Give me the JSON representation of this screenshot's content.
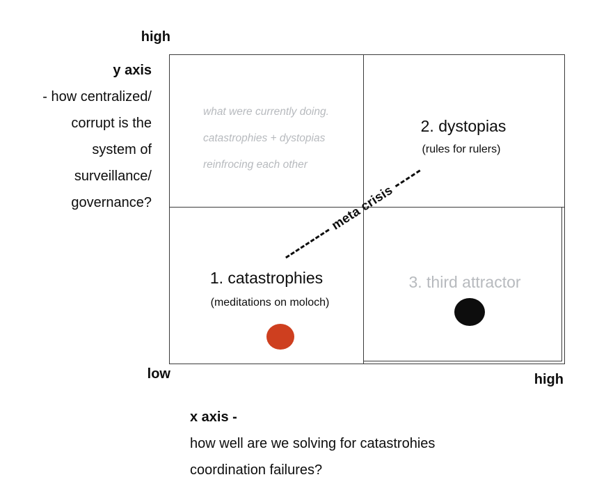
{
  "diagram": {
    "y_axis": {
      "top_label": "high",
      "title": "y axis",
      "lines": [
        "- how centralized/",
        "corrupt is the",
        "system of",
        "surveillance/",
        "governance?"
      ],
      "bottom_label": "low"
    },
    "x_axis": {
      "right_label": "high",
      "title": "x axis -",
      "lines": [
        "how well are we solving for catastrohies",
        "coordination failures?"
      ]
    },
    "quadrants": {
      "top_left_note": {
        "lines": [
          "what were currently doing.",
          "catastrophies + dystopias",
          "reinfrocing each other"
        ]
      },
      "top_right": {
        "title": "2. dystopias",
        "subtitle": "(rules for rulers)"
      },
      "bottom_left": {
        "title": "1. catastrophies",
        "subtitle": "(meditations on moloch)"
      },
      "bottom_right": {
        "title": "3. third attractor"
      }
    },
    "meta_crisis_label": "meta crisis",
    "colors": {
      "red_dot": "#ce3f1f",
      "black_dot": "#0d0d0d",
      "muted_text": "#b7babe",
      "border": "#3a3a3a"
    }
  }
}
